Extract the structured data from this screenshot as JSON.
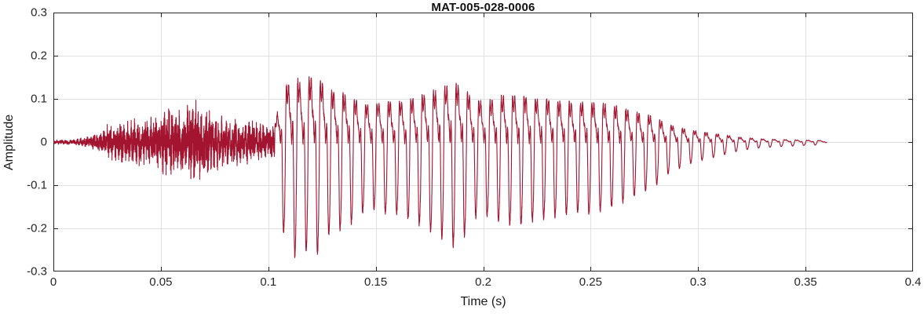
{
  "chart_data": {
    "type": "line",
    "title": "MAT-005-028-0006",
    "xlabel": "Time (s)",
    "ylabel": "Amplitude",
    "xlim": [
      0,
      0.4
    ],
    "ylim": [
      -0.3,
      0.3
    ],
    "xticks": [
      0,
      0.05,
      0.1,
      0.15,
      0.2,
      0.25,
      0.3,
      0.35,
      0.4
    ],
    "xtick_labels": [
      "0",
      "0.05",
      "0.1",
      "0.15",
      "0.2",
      "0.25",
      "0.3",
      "0.35",
      "0.4"
    ],
    "yticks": [
      -0.3,
      -0.2,
      -0.1,
      0,
      0.1,
      0.2,
      0.3
    ],
    "ytick_labels": [
      "-0.3",
      "-0.2",
      "-0.1",
      "0",
      "0.1",
      "0.2",
      "0.3"
    ],
    "grid": true,
    "legend": "none",
    "line_color": "#A2142F",
    "axis_color": "#262626",
    "grid_color": "#E0E0E0",
    "background_color": "#FFFFFF",
    "signal": {
      "duration_s": 0.36,
      "voiced_start_s": 0.103,
      "fundamental_hz": 190,
      "peak_amplitude": 0.21,
      "envelope": [
        [
          0.0,
          0.004
        ],
        [
          0.01,
          0.006
        ],
        [
          0.015,
          0.01
        ],
        [
          0.02,
          0.02
        ],
        [
          0.025,
          0.035
        ],
        [
          0.03,
          0.045
        ],
        [
          0.035,
          0.048
        ],
        [
          0.04,
          0.05
        ],
        [
          0.045,
          0.055
        ],
        [
          0.05,
          0.065
        ],
        [
          0.055,
          0.08
        ],
        [
          0.06,
          0.07
        ],
        [
          0.065,
          0.09
        ],
        [
          0.07,
          0.075
        ],
        [
          0.075,
          0.06
        ],
        [
          0.08,
          0.055
        ],
        [
          0.085,
          0.05
        ],
        [
          0.09,
          0.045
        ],
        [
          0.095,
          0.05
        ],
        [
          0.1,
          0.035
        ],
        [
          0.103,
          0.05
        ],
        [
          0.105,
          0.13
        ],
        [
          0.108,
          0.18
        ],
        [
          0.112,
          0.21
        ],
        [
          0.116,
          0.19
        ],
        [
          0.12,
          0.21
        ],
        [
          0.124,
          0.2
        ],
        [
          0.128,
          0.17
        ],
        [
          0.133,
          0.16
        ],
        [
          0.138,
          0.15
        ],
        [
          0.143,
          0.13
        ],
        [
          0.148,
          0.12
        ],
        [
          0.153,
          0.13
        ],
        [
          0.16,
          0.13
        ],
        [
          0.165,
          0.14
        ],
        [
          0.17,
          0.15
        ],
        [
          0.175,
          0.16
        ],
        [
          0.18,
          0.17
        ],
        [
          0.185,
          0.19
        ],
        [
          0.19,
          0.18
        ],
        [
          0.195,
          0.14
        ],
        [
          0.2,
          0.13
        ],
        [
          0.205,
          0.14
        ],
        [
          0.21,
          0.15
        ],
        [
          0.215,
          0.15
        ],
        [
          0.22,
          0.15
        ],
        [
          0.225,
          0.14
        ],
        [
          0.23,
          0.14
        ],
        [
          0.235,
          0.135
        ],
        [
          0.24,
          0.13
        ],
        [
          0.245,
          0.13
        ],
        [
          0.25,
          0.13
        ],
        [
          0.255,
          0.125
        ],
        [
          0.26,
          0.12
        ],
        [
          0.265,
          0.11
        ],
        [
          0.27,
          0.1
        ],
        [
          0.275,
          0.09
        ],
        [
          0.28,
          0.08
        ],
        [
          0.285,
          0.06
        ],
        [
          0.29,
          0.05
        ],
        [
          0.295,
          0.04
        ],
        [
          0.3,
          0.035
        ],
        [
          0.305,
          0.03
        ],
        [
          0.31,
          0.025
        ],
        [
          0.315,
          0.02
        ],
        [
          0.32,
          0.015
        ],
        [
          0.33,
          0.01
        ],
        [
          0.34,
          0.008
        ],
        [
          0.35,
          0.006
        ],
        [
          0.358,
          0.005
        ],
        [
          0.36,
          0.0
        ]
      ]
    }
  }
}
